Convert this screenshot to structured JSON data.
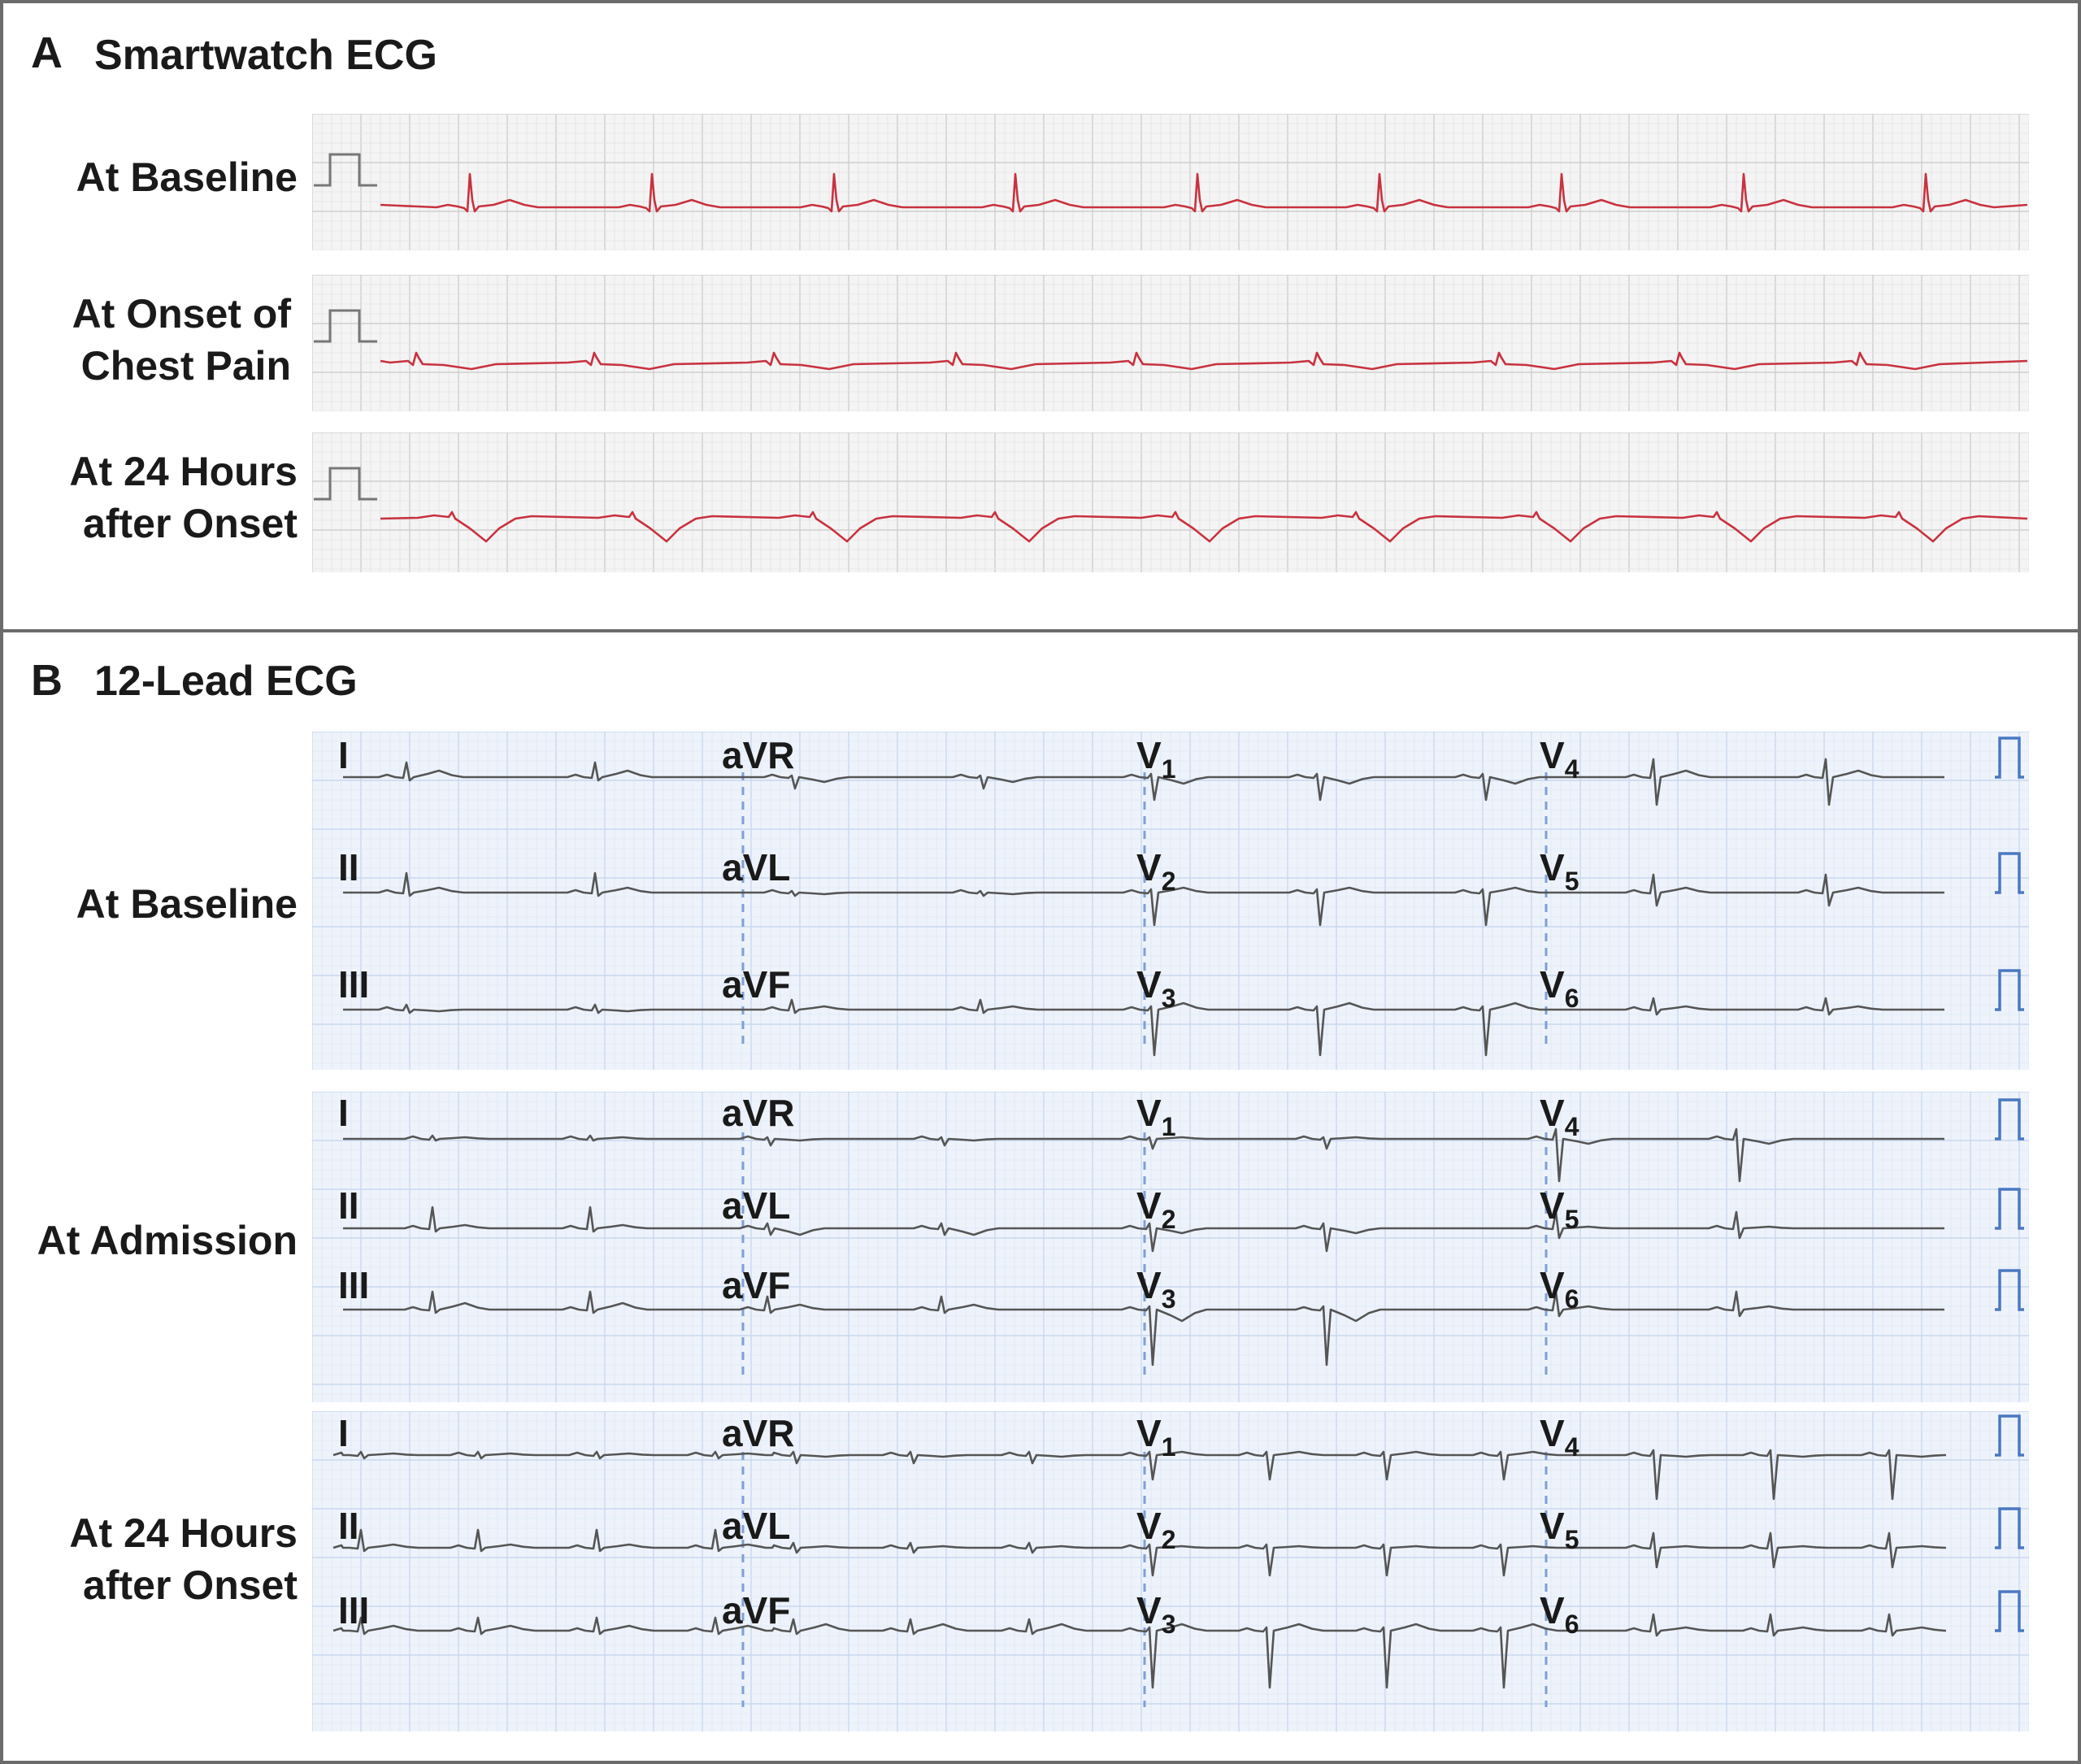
{
  "panel_a": {
    "letter": "A",
    "title": "Smartwatch ECG",
    "rows": [
      {
        "label_lines": [
          "At Baseline"
        ]
      },
      {
        "label_lines": [
          "At Onset of",
          "Chest Pain"
        ]
      },
      {
        "label_lines": [
          "At 24 Hours",
          "after Onset"
        ]
      }
    ],
    "trace_color": "#c8323f",
    "grid_color": "#e6e6e6"
  },
  "panel_b": {
    "letter": "B",
    "title": "12-Lead ECG",
    "rows": [
      {
        "label_lines": [
          "At Baseline"
        ]
      },
      {
        "label_lines": [
          "At Admission"
        ]
      },
      {
        "label_lines": [
          "At 24 Hours",
          "after Onset"
        ]
      }
    ],
    "lead_columns": [
      [
        "I",
        "II",
        "III"
      ],
      [
        "aVR",
        "aVL",
        "aVF"
      ],
      [
        "V1",
        "V2",
        "V3"
      ],
      [
        "V4",
        "V5",
        "V6"
      ]
    ],
    "lead_subscripts": [
      "1",
      "2",
      "3",
      "4",
      "5",
      "6"
    ],
    "trace_color": "#555555",
    "grid_color": "#dde8f6",
    "calibration_color": "#4a78c2"
  }
}
